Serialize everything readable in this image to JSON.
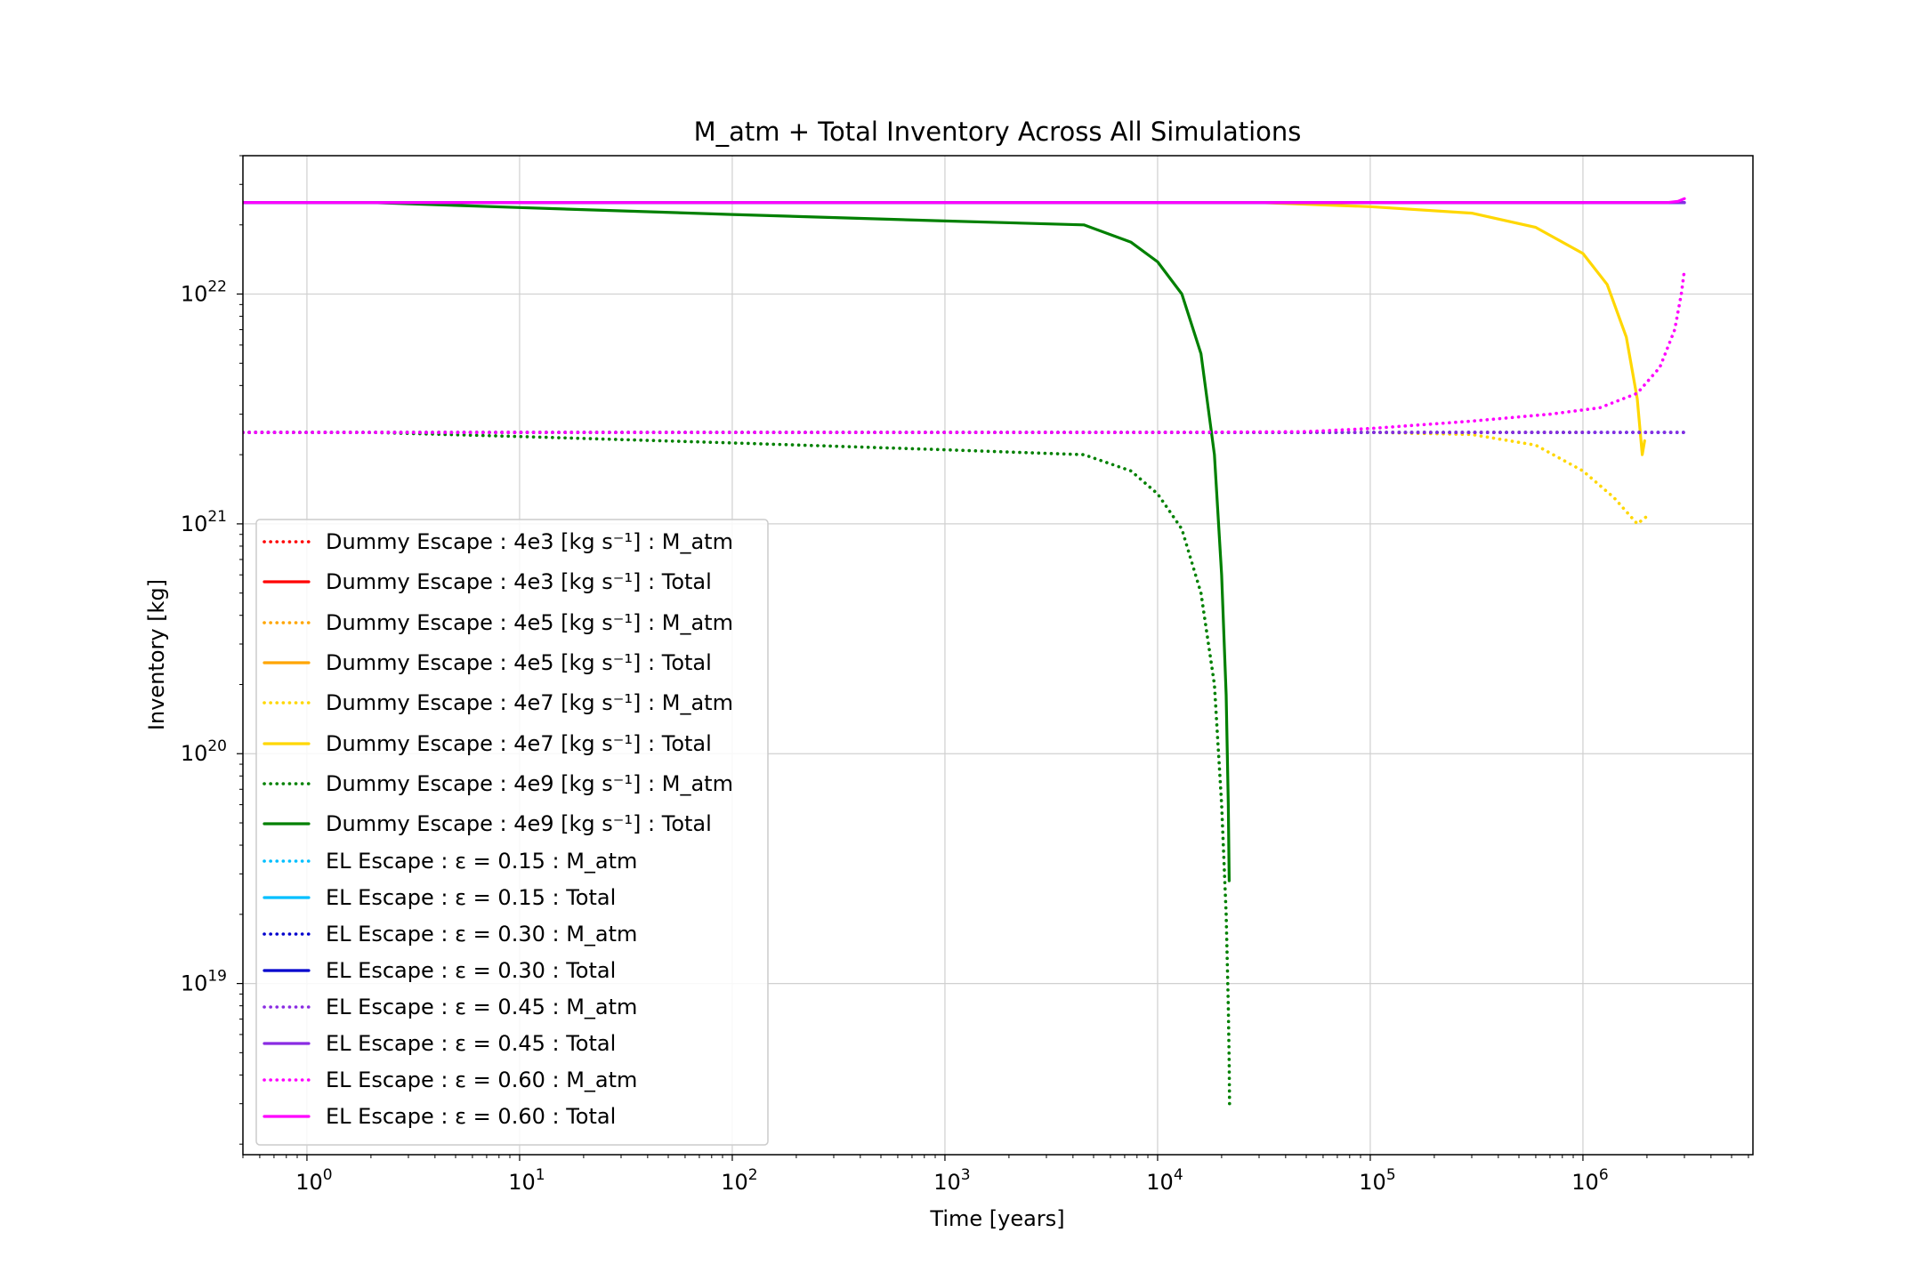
{
  "chart_data": {
    "type": "line",
    "title": "M_atm + Total Inventory Across All Simulations",
    "xlabel": "Time [years]",
    "ylabel": "Inventory [kg]",
    "xscale": "log",
    "yscale": "log",
    "xlim": [
      0.5,
      6300000
    ],
    "ylim": [
      1.8e+18,
      4e+22
    ],
    "grid": true,
    "legend_position": "lower-left",
    "x_ticks": [
      {
        "value": 1,
        "base": "10",
        "exp": "0"
      },
      {
        "value": 10,
        "base": "10",
        "exp": "1"
      },
      {
        "value": 100,
        "base": "10",
        "exp": "2"
      },
      {
        "value": 1000,
        "base": "10",
        "exp": "3"
      },
      {
        "value": 10000,
        "base": "10",
        "exp": "4"
      },
      {
        "value": 100000,
        "base": "10",
        "exp": "5"
      },
      {
        "value": 1000000,
        "base": "10",
        "exp": "6"
      }
    ],
    "y_ticks": [
      {
        "value": 1e+19,
        "base": "10",
        "exp": "19"
      },
      {
        "value": 1e+20,
        "base": "10",
        "exp": "20"
      },
      {
        "value": 1e+21,
        "base": "10",
        "exp": "21"
      },
      {
        "value": 1e+22,
        "base": "10",
        "exp": "22"
      }
    ],
    "series": [
      {
        "name": "Dummy Escape : 4e3 [kg s⁻¹] : M_atm",
        "color": "#ff0000",
        "style": "dotted",
        "x": [
          0.5,
          1000000
        ],
        "y": [
          2.5e+21,
          2.5e+21
        ]
      },
      {
        "name": "Dummy Escape : 4e3 [kg s⁻¹] : Total",
        "color": "#ff0000",
        "style": "solid",
        "x": [
          0.5,
          1000000
        ],
        "y": [
          2.5e+22,
          2.5e+22
        ]
      },
      {
        "name": "Dummy Escape : 4e5 [kg s⁻¹] : M_atm",
        "color": "#ffa500",
        "style": "dotted",
        "x": [
          0.5,
          1000000
        ],
        "y": [
          2.5e+21,
          2.5e+21
        ]
      },
      {
        "name": "Dummy Escape : 4e5 [kg s⁻¹] : Total",
        "color": "#ffa500",
        "style": "solid",
        "x": [
          0.5,
          1000000
        ],
        "y": [
          2.5e+22,
          2.5e+22
        ]
      },
      {
        "name": "Dummy Escape : 4e7 [kg s⁻¹] : M_atm",
        "color": "#ffd700",
        "style": "dotted",
        "x": [
          0.5,
          30000,
          100000,
          300000,
          600000,
          1000000,
          1400000,
          1800000,
          2000000
        ],
        "y": [
          2.5e+21,
          2.5e+21,
          2.5e+21,
          2.45e+21,
          2.2e+21,
          1.7e+21,
          1.3e+21,
          1e+21,
          1.08e+21
        ]
      },
      {
        "name": "Dummy Escape : 4e7 [kg s⁻¹] : Total",
        "color": "#ffd700",
        "style": "solid",
        "x": [
          0.5,
          30000,
          100000,
          300000,
          600000,
          1000000,
          1300000,
          1600000,
          1800000,
          1900000,
          1950000
        ],
        "y": [
          2.5e+22,
          2.5e+22,
          2.4e+22,
          2.25e+22,
          1.95e+22,
          1.5e+22,
          1.1e+22,
          6.5e+21,
          3.5e+21,
          2e+21,
          2.3e+21
        ]
      },
      {
        "name": "Dummy Escape : 4e9 [kg s⁻¹] : M_atm",
        "color": "#008000",
        "style": "dotted",
        "x": [
          0.5,
          2,
          10,
          100,
          1000,
          4500,
          7500,
          10000,
          13000,
          16000,
          18500,
          20000,
          21000,
          21500,
          21700,
          21800
        ],
        "y": [
          2.5e+21,
          2.5e+21,
          2.4e+21,
          2.25e+21,
          2.1e+21,
          2e+21,
          1.7e+21,
          1.35e+21,
          9.5e+20,
          5e+20,
          2e+20,
          6e+19,
          2e+19,
          8e+18,
          4.5e+18,
          3e+18
        ]
      },
      {
        "name": "Dummy Escape : 4e9 [kg s⁻¹] : Total",
        "color": "#008000",
        "style": "solid",
        "x": [
          0.5,
          2,
          10,
          100,
          1000,
          4500,
          7500,
          10000,
          13000,
          16000,
          18500,
          20000,
          21000,
          21500,
          21700
        ],
        "y": [
          2.5e+22,
          2.5e+22,
          2.38e+22,
          2.22e+22,
          2.08e+22,
          2e+22,
          1.68e+22,
          1.38e+22,
          1e+22,
          5.5e+21,
          2e+21,
          6e+20,
          1.8e+20,
          6e+19,
          2.8e+19
        ]
      },
      {
        "name": "EL Escape : ε = 0.15 : M_atm",
        "color": "#00bfff",
        "style": "dotted",
        "x": [
          0.5,
          3000000
        ],
        "y": [
          2.5e+21,
          2.5e+21
        ]
      },
      {
        "name": "EL Escape : ε = 0.15 : Total",
        "color": "#00bfff",
        "style": "solid",
        "x": [
          0.5,
          3000000
        ],
        "y": [
          2.5e+22,
          2.5e+22
        ]
      },
      {
        "name": "EL Escape : ε = 0.30 : M_atm",
        "color": "#0000cd",
        "style": "dotted",
        "x": [
          0.5,
          3000000
        ],
        "y": [
          2.5e+21,
          2.5e+21
        ]
      },
      {
        "name": "EL Escape : ε = 0.30 : Total",
        "color": "#0000cd",
        "style": "solid",
        "x": [
          0.5,
          3000000
        ],
        "y": [
          2.5e+22,
          2.5e+22
        ]
      },
      {
        "name": "EL Escape : ε = 0.45 : M_atm",
        "color": "#8a2be2",
        "style": "dotted",
        "x": [
          0.5,
          3000000
        ],
        "y": [
          2.5e+21,
          2.5e+21
        ]
      },
      {
        "name": "EL Escape : ε = 0.45 : Total",
        "color": "#8a2be2",
        "style": "solid",
        "x": [
          0.5,
          3000000
        ],
        "y": [
          2.5e+22,
          2.5e+22
        ]
      },
      {
        "name": "EL Escape : ε = 0.60 : M_atm",
        "color": "#ff00ff",
        "style": "dotted",
        "x": [
          0.5,
          10000,
          50000,
          100000,
          300000,
          700000,
          1200000,
          1800000,
          2300000,
          2700000,
          2900000,
          3000000
        ],
        "y": [
          2.5e+21,
          2.5e+21,
          2.52e+21,
          2.6e+21,
          2.8e+21,
          3e+21,
          3.2e+21,
          3.7e+21,
          4.8e+21,
          7e+21,
          1e+22,
          1.27e+22
        ]
      },
      {
        "name": "EL Escape : ε = 0.60 : Total",
        "color": "#ff00ff",
        "style": "solid",
        "x": [
          0.5,
          1000000,
          2500000,
          2800000,
          3000000
        ],
        "y": [
          2.5e+22,
          2.5e+22,
          2.5e+22,
          2.53e+22,
          2.6e+22
        ]
      }
    ]
  }
}
